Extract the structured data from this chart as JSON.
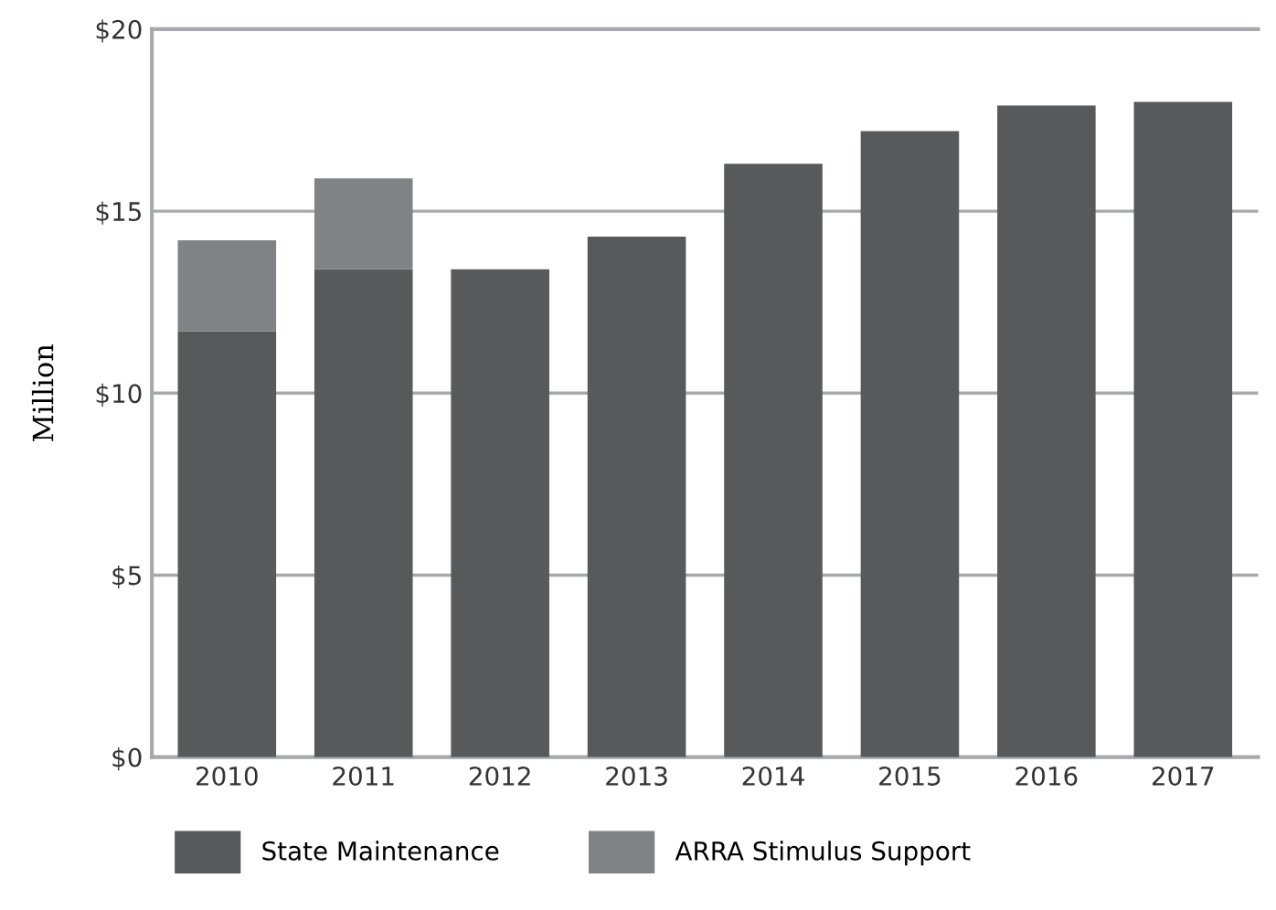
{
  "chart_data": {
    "type": "bar",
    "stacked": true,
    "ylabel": "Million",
    "categories": [
      "2010",
      "2011",
      "2012",
      "2013",
      "2014",
      "2015",
      "2016",
      "2017"
    ],
    "series": [
      {
        "name": "State Maintenance",
        "color": "#58595b",
        "values": [
          11.7,
          13.4,
          13.4,
          14.3,
          16.3,
          17.2,
          17.9,
          18.0
        ]
      },
      {
        "name": "ARRA Stimulus Support",
        "color": "#808285",
        "values": [
          2.5,
          2.5,
          null,
          null,
          null,
          null,
          null,
          null
        ]
      }
    ],
    "ylim": [
      0,
      20
    ],
    "yticks": [
      {
        "value": 0,
        "label": "$0"
      },
      {
        "value": 5,
        "label": "$5"
      },
      {
        "value": 10,
        "label": "$10"
      },
      {
        "value": 15,
        "label": "$15"
      },
      {
        "value": 20,
        "label": "$20"
      }
    ],
    "grid": "y",
    "legend": "bottom"
  }
}
